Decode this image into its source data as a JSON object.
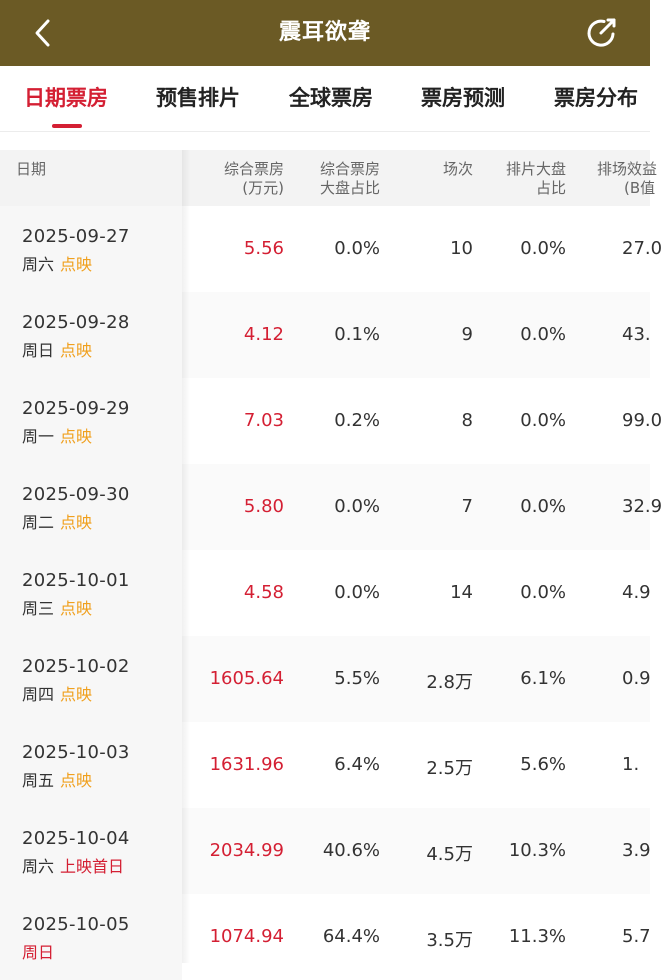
{
  "header": {
    "title": "震耳欲聋"
  },
  "tabs": [
    {
      "label": "日期票房",
      "active": true
    },
    {
      "label": "预售排片",
      "active": false
    },
    {
      "label": "全球票房",
      "active": false
    },
    {
      "label": "票房预测",
      "active": false
    },
    {
      "label": "票房分布",
      "active": false
    }
  ],
  "table": {
    "columns": [
      {
        "line1": "日期",
        "line2": ""
      },
      {
        "line1": "综合票房",
        "line2": "(万元)"
      },
      {
        "line1": "综合票房",
        "line2": "大盘占比"
      },
      {
        "line1": "场次",
        "line2": ""
      },
      {
        "line1": "排片大盘",
        "line2": "占比"
      },
      {
        "line1": "排场效益",
        "line2": "(B值"
      }
    ],
    "rows": [
      {
        "date": "2025-09-27",
        "weekday": "周六",
        "tag": "点映",
        "box_office": "5.56",
        "bo_share": "0.0%",
        "shows": "10",
        "schedule_share": "0.0%",
        "b_value": "27.0"
      },
      {
        "date": "2025-09-28",
        "weekday": "周日",
        "tag": "点映",
        "box_office": "4.12",
        "bo_share": "0.1%",
        "shows": "9",
        "schedule_share": "0.0%",
        "b_value": "43."
      },
      {
        "date": "2025-09-29",
        "weekday": "周一",
        "tag": "点映",
        "box_office": "7.03",
        "bo_share": "0.2%",
        "shows": "8",
        "schedule_share": "0.0%",
        "b_value": "99.0"
      },
      {
        "date": "2025-09-30",
        "weekday": "周二",
        "tag": "点映",
        "box_office": "5.80",
        "bo_share": "0.0%",
        "shows": "7",
        "schedule_share": "0.0%",
        "b_value": "32.9"
      },
      {
        "date": "2025-10-01",
        "weekday": "周三",
        "tag": "点映",
        "box_office": "4.58",
        "bo_share": "0.0%",
        "shows": "14",
        "schedule_share": "0.0%",
        "b_value": "4.9"
      },
      {
        "date": "2025-10-02",
        "weekday": "周四",
        "tag": "点映",
        "box_office": "1605.64",
        "bo_share": "5.5%",
        "shows": "2.8万",
        "schedule_share": "6.1%",
        "b_value": "0.9"
      },
      {
        "date": "2025-10-03",
        "weekday": "周五",
        "tag": "点映",
        "box_office": "1631.96",
        "bo_share": "6.4%",
        "shows": "2.5万",
        "schedule_share": "5.6%",
        "b_value": "1."
      },
      {
        "date": "2025-10-04",
        "weekday": "周六",
        "tag": "上映首日",
        "box_office": "2034.99",
        "bo_share": "40.6%",
        "shows": "4.5万",
        "schedule_share": "10.3%",
        "b_value": "3.9"
      },
      {
        "date": "2025-10-05",
        "weekday": "周日",
        "tag": "",
        "box_office": "1074.94",
        "bo_share": "64.4%",
        "shows": "3.5万",
        "schedule_share": "11.3%",
        "b_value": "5.7"
      }
    ]
  },
  "colors": {
    "header_bg": "#6b5a25",
    "accent_red": "#d41f33",
    "tag_orange": "#f0a01e"
  },
  "icons": {
    "back": "chevron-left-icon",
    "share": "share-icon"
  }
}
